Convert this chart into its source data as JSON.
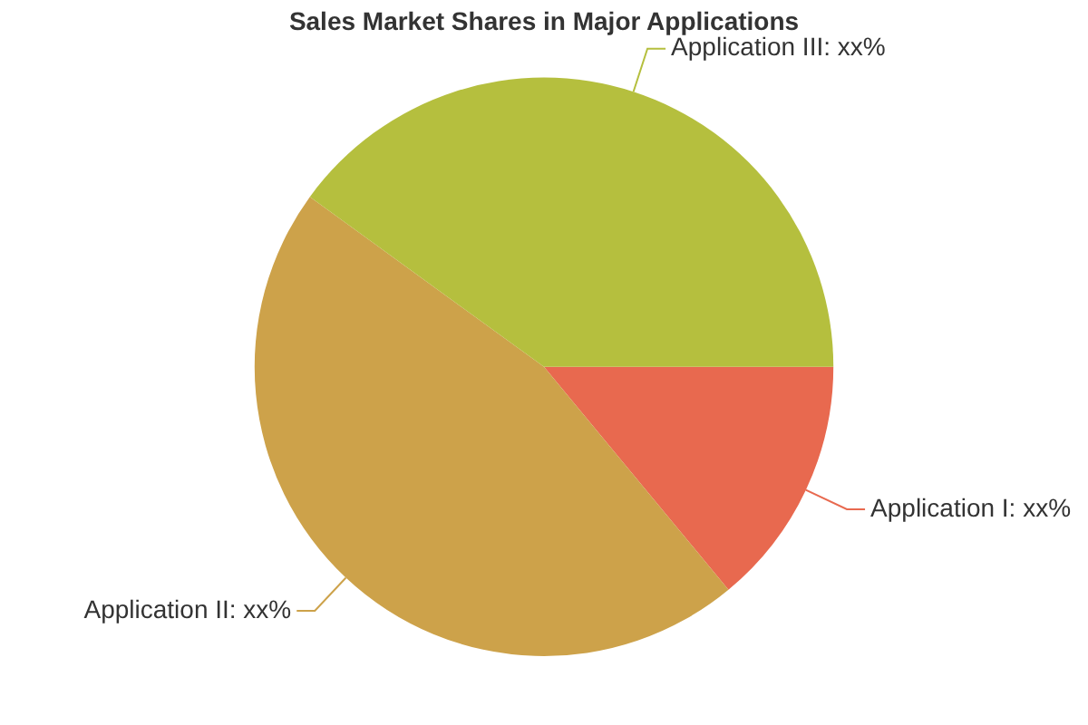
{
  "chart_data": {
    "type": "pie",
    "title": "Sales Market Shares in Major Applications",
    "categories": [
      "Application I",
      "Application II",
      "Application III"
    ],
    "values": [
      14,
      46,
      40
    ],
    "colors": [
      "#e8694f",
      "#cda24a",
      "#b5bf3e"
    ],
    "value_labels": [
      "xx%",
      "xx%",
      "xx%"
    ],
    "legend": false
  }
}
